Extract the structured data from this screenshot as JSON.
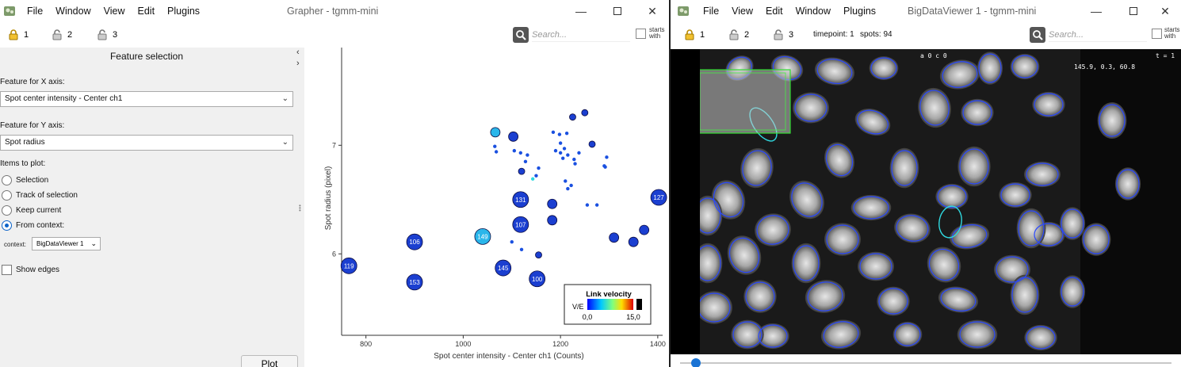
{
  "grapher": {
    "menu": [
      "File",
      "Window",
      "View",
      "Edit",
      "Plugins"
    ],
    "title": "Grapher - tgmm-mini",
    "locks": [
      "1",
      "2",
      "3"
    ],
    "search_placeholder": "Search...",
    "starts_with": "starts with",
    "panel": {
      "title": "Feature selection",
      "x_label": "Feature for X axis:",
      "x_value": "Spot center intensity - Center ch1",
      "y_label": "Feature for Y axis:",
      "y_value": "Spot radius",
      "items_label": "Items to plot:",
      "radios": [
        {
          "label": "Selection",
          "checked": false
        },
        {
          "label": "Track of selection",
          "checked": false
        },
        {
          "label": "Keep current",
          "checked": false
        },
        {
          "label": "From context:",
          "checked": true
        }
      ],
      "context_label": "context:",
      "context_value": "BigDataViewer 1",
      "show_edges": "Show edges",
      "plot_button": "Plot"
    }
  },
  "chart_data": {
    "type": "scatter",
    "xlabel": "Spot center intensity - Center ch1 (Counts)",
    "ylabel": "Spot radius (pixel)",
    "xlim": [
      750,
      1410
    ],
    "ylim": [
      5.25,
      7.9
    ],
    "xticks": [
      800,
      1000,
      1200,
      1400
    ],
    "yticks": [
      6,
      7
    ],
    "legend": {
      "title": "Link velocity",
      "axis_label": "V/E",
      "min_label": "0,0",
      "max_label": "15,0",
      "placement": "bottom-right"
    },
    "colors": {
      "big": "#1b3fd0",
      "small": "#1a50e0",
      "light": "#2ab6ea",
      "cyan": "#30d9e0"
    },
    "points": [
      {
        "x": 765,
        "y": 5.89,
        "size": "big",
        "label": "119"
      },
      {
        "x": 900,
        "y": 6.11,
        "size": "big",
        "label": "106"
      },
      {
        "x": 900,
        "y": 5.74,
        "size": "big",
        "label": "153"
      },
      {
        "x": 1040,
        "y": 6.16,
        "size": "big",
        "label": "149",
        "color": "light"
      },
      {
        "x": 1082,
        "y": 5.87,
        "size": "big",
        "label": "145"
      },
      {
        "x": 1118,
        "y": 6.5,
        "size": "big",
        "label": "131"
      },
      {
        "x": 1118,
        "y": 6.27,
        "size": "big",
        "label": "107"
      },
      {
        "x": 1152,
        "y": 5.77,
        "size": "big",
        "label": "100"
      },
      {
        "x": 1402,
        "y": 6.52,
        "size": "big",
        "label": "127"
      },
      {
        "x": 1066,
        "y": 7.12,
        "size": "mid",
        "color": "light"
      },
      {
        "x": 1103,
        "y": 7.08,
        "size": "mid"
      },
      {
        "x": 1183,
        "y": 6.46,
        "size": "mid"
      },
      {
        "x": 1183,
        "y": 6.31,
        "size": "mid"
      },
      {
        "x": 1310,
        "y": 6.15,
        "size": "mid"
      },
      {
        "x": 1350,
        "y": 6.11,
        "size": "mid"
      },
      {
        "x": 1372,
        "y": 6.22,
        "size": "mid"
      },
      {
        "x": 1155,
        "y": 5.99,
        "size": "small"
      },
      {
        "x": 1120,
        "y": 6.76,
        "size": "small"
      },
      {
        "x": 1250,
        "y": 7.3,
        "size": "small"
      },
      {
        "x": 1225,
        "y": 7.26,
        "size": "small"
      },
      {
        "x": 1265,
        "y": 7.01,
        "size": "small"
      },
      {
        "x": 1065,
        "y": 6.99,
        "size": "tiny"
      },
      {
        "x": 1068,
        "y": 6.94,
        "size": "tiny"
      },
      {
        "x": 1105,
        "y": 6.95,
        "size": "tiny"
      },
      {
        "x": 1118,
        "y": 6.93,
        "size": "tiny"
      },
      {
        "x": 1132,
        "y": 6.91,
        "size": "tiny"
      },
      {
        "x": 1128,
        "y": 6.85,
        "size": "tiny"
      },
      {
        "x": 1150,
        "y": 6.72,
        "size": "tiny"
      },
      {
        "x": 1143,
        "y": 6.69,
        "size": "tiny",
        "color": "cyan"
      },
      {
        "x": 1185,
        "y": 7.12,
        "size": "tiny"
      },
      {
        "x": 1198,
        "y": 7.1,
        "size": "tiny"
      },
      {
        "x": 1213,
        "y": 7.11,
        "size": "tiny"
      },
      {
        "x": 1200,
        "y": 7.02,
        "size": "tiny"
      },
      {
        "x": 1190,
        "y": 6.95,
        "size": "tiny"
      },
      {
        "x": 1208,
        "y": 6.97,
        "size": "tiny"
      },
      {
        "x": 1215,
        "y": 6.91,
        "size": "tiny"
      },
      {
        "x": 1205,
        "y": 6.88,
        "size": "tiny"
      },
      {
        "x": 1200,
        "y": 6.93,
        "size": "tiny"
      },
      {
        "x": 1228,
        "y": 6.87,
        "size": "tiny"
      },
      {
        "x": 1230,
        "y": 6.83,
        "size": "tiny"
      },
      {
        "x": 1238,
        "y": 6.93,
        "size": "tiny"
      },
      {
        "x": 1290,
        "y": 6.81,
        "size": "tiny"
      },
      {
        "x": 1292,
        "y": 6.8,
        "size": "tiny"
      },
      {
        "x": 1295,
        "y": 6.89,
        "size": "tiny"
      },
      {
        "x": 1210,
        "y": 6.67,
        "size": "tiny"
      },
      {
        "x": 1222,
        "y": 6.63,
        "size": "tiny"
      },
      {
        "x": 1215,
        "y": 6.6,
        "size": "tiny"
      },
      {
        "x": 1255,
        "y": 6.45,
        "size": "tiny"
      },
      {
        "x": 1275,
        "y": 6.45,
        "size": "tiny"
      },
      {
        "x": 1100,
        "y": 6.11,
        "size": "tiny"
      },
      {
        "x": 1120,
        "y": 6.04,
        "size": "tiny"
      },
      {
        "x": 1155,
        "y": 6.79,
        "size": "tiny"
      }
    ]
  },
  "bdv": {
    "menu": [
      "File",
      "View",
      "Edit",
      "Window",
      "Plugins"
    ],
    "title": "BigDataViewer 1 - tgmm-mini",
    "locks": [
      "1",
      "2",
      "3"
    ],
    "timepoint": "timepoint: 1",
    "spots": "spots: 94",
    "search_placeholder": "Search...",
    "starts_with": "starts with",
    "overlay_source": "a 0 c 0",
    "overlay_time": "t = 1",
    "overlay_coords": "145.9,    0.3,    60.8"
  }
}
